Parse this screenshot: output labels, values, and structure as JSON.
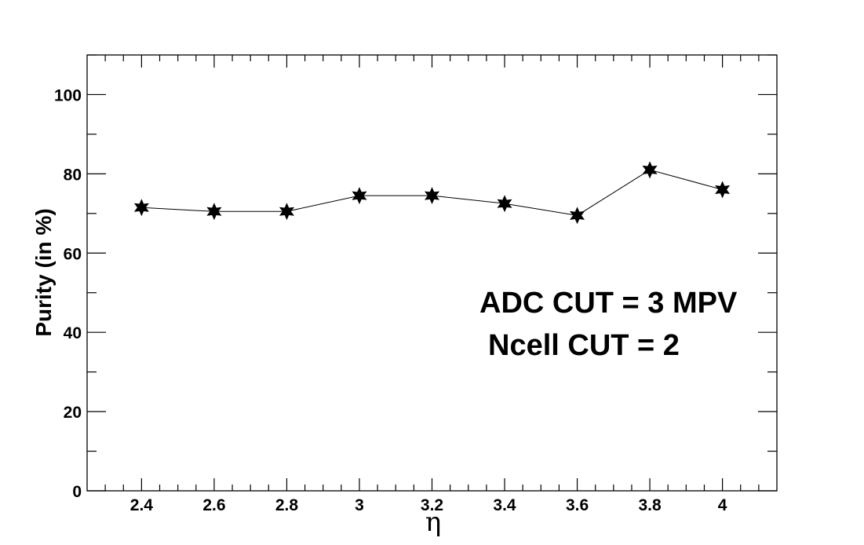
{
  "chart_data": {
    "type": "line",
    "title": "",
    "xlabel": "η",
    "ylabel": "Purity (in %)",
    "xlim": [
      2.25,
      4.15
    ],
    "ylim": [
      0,
      110
    ],
    "x_ticks": [
      "2.4",
      "2.6",
      "2.8",
      "3",
      "3.2",
      "3.4",
      "3.6",
      "3.8",
      "4"
    ],
    "y_ticks": [
      "0",
      "20",
      "40",
      "60",
      "80",
      "100"
    ],
    "series": [
      {
        "x": [
          2.4,
          2.6,
          2.8,
          3.0,
          3.2,
          3.4,
          3.6,
          3.8,
          4.0
        ],
        "y": [
          71.5,
          70.5,
          70.5,
          74.5,
          74.5,
          72.5,
          69.5,
          81.0,
          76.0
        ],
        "marker": "star",
        "color": "#000000"
      }
    ],
    "annotations": [
      "ADC CUT = 3 MPV",
      "Ncell CUT = 2"
    ],
    "grid": false,
    "legend": "none"
  }
}
